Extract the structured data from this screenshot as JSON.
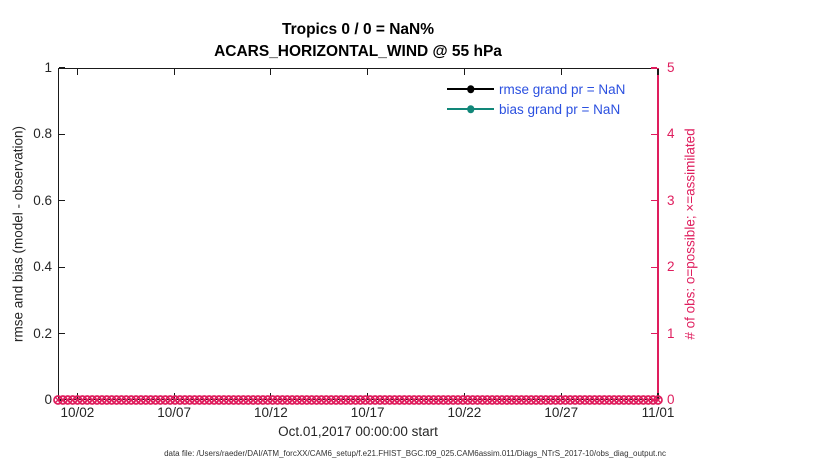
{
  "figure": {
    "title_line1": "Tropics 0 / 0 = NaN%",
    "title_line2": "ACARS_HORIZONTAL_WIND @ 55 hPa",
    "footer": "data file: /Users/raeder/DAI/ATM_forcXX/CAM6_setup/f.e21.FHIST_BGC.f09_025.CAM6assim.011/Diags_NTrS_2017-10/obs_diag_output.nc"
  },
  "chart_data": {
    "type": "line",
    "title": "Tropics 0 / 0 = NaN%",
    "subtitle": "ACARS_HORIZONTAL_WIND @ 55 hPa",
    "xlabel": "Oct.01,2017 00:00:00 start",
    "grid": false,
    "x_axis": {
      "range_days_since_oct01": [
        0,
        31
      ],
      "tick_days": [
        1,
        6,
        11,
        16,
        21,
        26,
        31
      ],
      "tick_labels": [
        "10/02",
        "10/07",
        "10/12",
        "10/17",
        "10/22",
        "10/27",
        "11/01"
      ]
    },
    "left_axis": {
      "label": "rmse and bias (model - observation)",
      "range": [
        0,
        1
      ],
      "ticks": [
        0,
        0.2,
        0.4,
        0.6,
        0.8,
        1
      ],
      "tick_labels": [
        "0",
        "0.2",
        "0.4",
        "0.6",
        "0.8",
        "1"
      ],
      "color": "#1a1a1a"
    },
    "right_axis": {
      "label": "# of obs: o=possible; ×=assimilated",
      "range": [
        0,
        5
      ],
      "ticks": [
        0,
        1,
        2,
        3,
        4,
        5
      ],
      "tick_labels": [
        "0",
        "1",
        "2",
        "3",
        "4",
        "5"
      ],
      "color": "#df1d5d"
    },
    "series": [
      {
        "name": "rmse grand pr = NaN",
        "color": "#000000",
        "marker": "filled-circle",
        "values": [],
        "note": "NaN - no curve drawn"
      },
      {
        "name": "bias grand pr = NaN",
        "color": "#128779",
        "marker": "filled-circle",
        "values": [],
        "note": "NaN - no curve drawn"
      },
      {
        "name": "obs possible",
        "axis": "right",
        "color": "#df1d5d",
        "marker": "o",
        "constant_value": 0,
        "count": 124
      },
      {
        "name": "obs assimilated",
        "axis": "right",
        "color": "#df1d5d",
        "marker": "x",
        "constant_value": 0,
        "count": 124
      }
    ],
    "legend": {
      "position": "top-right-inside",
      "text_color": "#2b50e0",
      "entries": [
        "rmse grand pr = NaN",
        "bias grand pr = NaN"
      ]
    }
  }
}
